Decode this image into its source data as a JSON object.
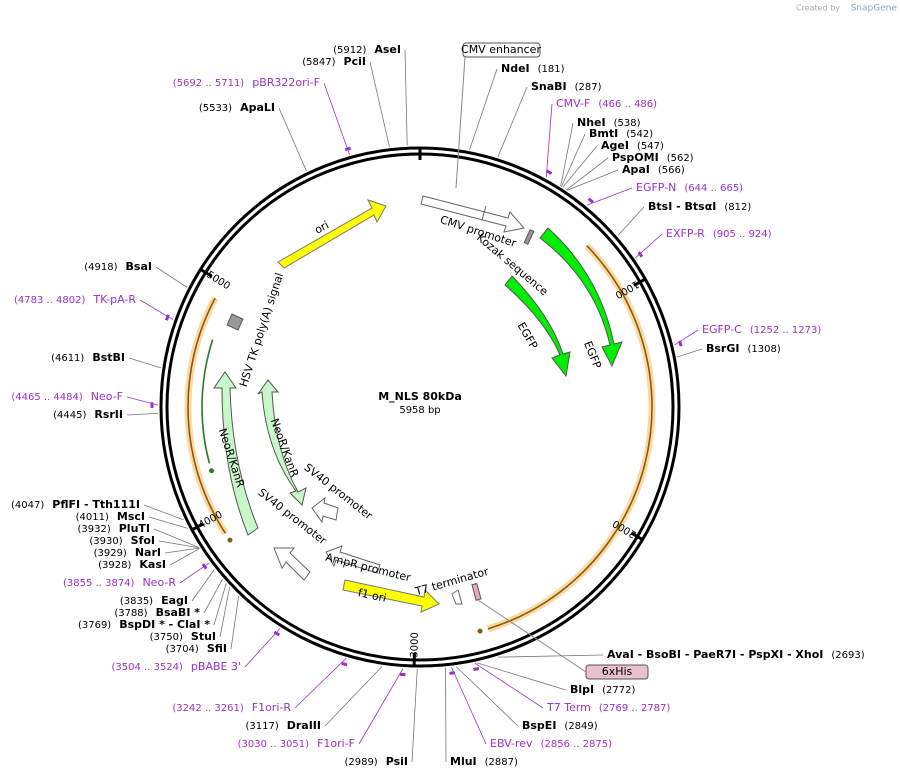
{
  "header": {
    "created_by": "Created by",
    "brand": "SnapGene"
  },
  "map": {
    "name": "M_NLS 80kDa",
    "size": "5958 bp"
  },
  "sites": [
    {
      "name": "AseI",
      "pos": "(5912)"
    },
    {
      "name": "PciI",
      "pos": "(5847)"
    },
    {
      "name": "ApaLI",
      "pos": "(5533)"
    },
    {
      "name": "NdeI",
      "pos": "(181)"
    },
    {
      "name": "SnaBI",
      "pos": "(287)"
    },
    {
      "name": "NheI",
      "pos": "(538)"
    },
    {
      "name": "BmtI",
      "pos": "(542)"
    },
    {
      "name": "AgeI",
      "pos": "(547)"
    },
    {
      "name": "PspOMI",
      "pos": "(562)"
    },
    {
      "name": "ApaI",
      "pos": "(566)"
    },
    {
      "name": "BtsI  - BtsαI",
      "pos": "(812)"
    },
    {
      "name": "BsrGI",
      "pos": "(1308)"
    },
    {
      "name": "AvaI  - BsoBI  - PaeR7I  - PspXI  - XhoI",
      "pos": "(2693)"
    },
    {
      "name": "BlpI",
      "pos": "(2772)"
    },
    {
      "name": "BspEI",
      "pos": "(2849)"
    },
    {
      "name": "MluI",
      "pos": "(2887)"
    },
    {
      "name": "PsiI",
      "pos": "(2989)"
    },
    {
      "name": "DraIII",
      "pos": "(3117)"
    },
    {
      "name": "SfiI",
      "pos": "(3704)"
    },
    {
      "name": "StuI",
      "pos": "(3750)"
    },
    {
      "name": "BspDI *  - ClaI *",
      "pos": "(3769)"
    },
    {
      "name": "BsaBI *",
      "pos": "(3788)"
    },
    {
      "name": "EagI",
      "pos": "(3835)"
    },
    {
      "name": "KasI",
      "pos": "(3928)"
    },
    {
      "name": "NarI",
      "pos": "(3929)"
    },
    {
      "name": "SfoI",
      "pos": "(3930)"
    },
    {
      "name": "PluTI",
      "pos": "(3932)"
    },
    {
      "name": "MscI",
      "pos": "(4011)"
    },
    {
      "name": "PflFI  - Tth111I",
      "pos": "(4047)"
    },
    {
      "name": "RsrII",
      "pos": "(4445)"
    },
    {
      "name": "BstBI",
      "pos": "(4611)"
    },
    {
      "name": "BsaI",
      "pos": "(4918)"
    }
  ],
  "primers": [
    {
      "name": "pBR322ori-F",
      "range": "(5692 .. 5711)"
    },
    {
      "name": "CMV-F",
      "range": "(466 .. 486)"
    },
    {
      "name": "EGFP-N",
      "range": "(644 .. 665)"
    },
    {
      "name": "EXFP-R",
      "range": "(905 .. 924)"
    },
    {
      "name": "EGFP-C",
      "range": "(1252 .. 1273)"
    },
    {
      "name": "T7 Term",
      "range": "(2769 .. 2787)"
    },
    {
      "name": "EBV-rev",
      "range": "(2856 .. 2875)"
    },
    {
      "name": "F1ori-F",
      "range": "(3030 .. 3051)"
    },
    {
      "name": "F1ori-R",
      "range": "(3242 .. 3261)"
    },
    {
      "name": "pBABE 3'",
      "range": "(3504 .. 3524)"
    },
    {
      "name": "Neo-R",
      "range": "(3855 .. 3874)"
    },
    {
      "name": "Neo-F",
      "range": "(4465 .. 4484)"
    },
    {
      "name": "TK-pA-R",
      "range": "(4783 .. 4802)"
    }
  ],
  "features": [
    "CMV enhancer",
    "6xHis",
    "ori",
    "CMV promoter",
    "Kozak sequence",
    "EGFP",
    "EGFP",
    "HSV TK poly(A) signal",
    "NeoR/KanR",
    "NeoR/KanR",
    "SV40 promoter",
    "SV40 promoter",
    "AmpR promoter",
    "f1 ori",
    "T7 terminator"
  ],
  "ticks": [
    "1000",
    "2000",
    "3000",
    "4000",
    "5000"
  ]
}
